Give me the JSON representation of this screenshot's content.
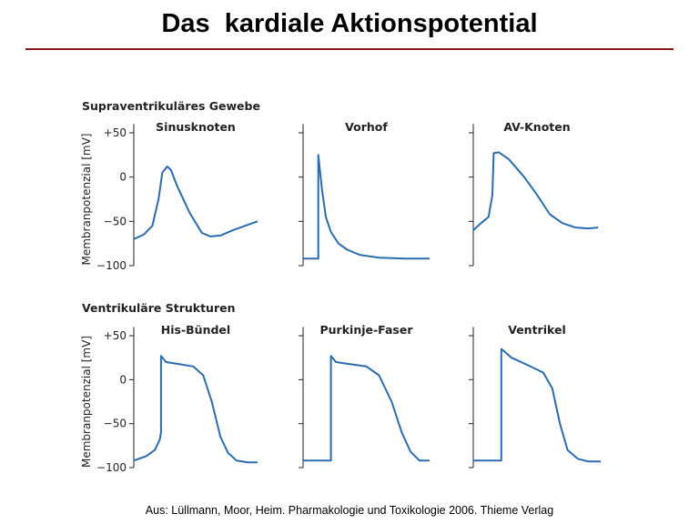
{
  "slide": {
    "title": "Das  kardiale Aktionspotential",
    "citation": "Aus: Lüllmann, Moor, Heim. Pharmakologie und Toxikologie 2006. Thieme Verlag"
  },
  "colors": {
    "rule": "#8b1a1a",
    "curve": "#2b6cb0",
    "axis": "#222222"
  },
  "chart_data": [
    {
      "type": "line",
      "section": "Supraventrikuläres Gewebe",
      "title": "Sinusknoten",
      "ylabel": "Membranpotenzial [mV]",
      "ylim": [
        -100,
        60
      ],
      "yticks": [
        50,
        0,
        -50,
        -100
      ],
      "ytick_labels": [
        "+50",
        "0",
        "−50",
        "−100"
      ],
      "grid": false,
      "series": [
        {
          "x": [
            0,
            0.08,
            0.15,
            0.2,
            0.23,
            0.27,
            0.3,
            0.35,
            0.45,
            0.55,
            0.62,
            0.7,
            0.8,
            0.9,
            1.0
          ],
          "values": [
            -70,
            -65,
            -55,
            -25,
            5,
            12,
            8,
            -10,
            -40,
            -63,
            -67,
            -66,
            -60,
            -55,
            -50
          ]
        }
      ]
    },
    {
      "type": "line",
      "section": "Supraventrikuläres Gewebe",
      "title": "Vorhof",
      "ylim": [
        -100,
        60
      ],
      "grid": false,
      "series": [
        {
          "x": [
            0,
            0.12,
            0.12,
            0.15,
            0.18,
            0.22,
            0.28,
            0.35,
            0.45,
            0.6,
            0.8,
            1.0
          ],
          "values": [
            -92,
            -92,
            25,
            -15,
            -45,
            -62,
            -75,
            -82,
            -88,
            -91,
            -92,
            -92
          ]
        }
      ]
    },
    {
      "type": "line",
      "section": "Supraventrikuläres Gewebe",
      "title": "AV-Knoten",
      "ylim": [
        -100,
        60
      ],
      "grid": false,
      "series": [
        {
          "x": [
            0,
            0.06,
            0.12,
            0.15,
            0.16,
            0.2,
            0.28,
            0.4,
            0.5,
            0.6,
            0.7,
            0.8,
            0.9,
            0.98
          ],
          "values": [
            -60,
            -52,
            -45,
            -20,
            27,
            28,
            20,
            0,
            -20,
            -42,
            -52,
            -57,
            -58,
            -57
          ]
        }
      ]
    },
    {
      "type": "line",
      "section": "Ventrikuläre Strukturen",
      "title": "His-Bündel",
      "ylabel": "Membranpotenzial [mV]",
      "ylim": [
        -100,
        60
      ],
      "yticks": [
        50,
        0,
        -50,
        -100
      ],
      "ytick_labels": [
        "+50",
        "0",
        "−50",
        "−100"
      ],
      "grid": false,
      "series": [
        {
          "x": [
            0,
            0.1,
            0.17,
            0.21,
            0.22,
            0.22,
            0.26,
            0.35,
            0.48,
            0.56,
            0.63,
            0.7,
            0.76,
            0.83,
            0.92,
            1.0
          ],
          "values": [
            -92,
            -87,
            -80,
            -68,
            -60,
            27,
            20,
            18,
            15,
            5,
            -25,
            -65,
            -83,
            -92,
            -94,
            -94
          ]
        }
      ]
    },
    {
      "type": "line",
      "section": "Ventrikuläre Strukturen",
      "title": "Purkinje-Faser",
      "ylim": [
        -100,
        60
      ],
      "grid": false,
      "series": [
        {
          "x": [
            0,
            0.22,
            0.22,
            0.26,
            0.35,
            0.5,
            0.6,
            0.7,
            0.78,
            0.85,
            0.92,
            1.0
          ],
          "values": [
            -92,
            -92,
            27,
            20,
            18,
            15,
            5,
            -25,
            -60,
            -82,
            -92,
            -92
          ]
        }
      ]
    },
    {
      "type": "line",
      "section": "Ventrikuläre Strukturen",
      "title": "Ventrikel",
      "ylim": [
        -100,
        60
      ],
      "grid": false,
      "series": [
        {
          "x": [
            0,
            0.22,
            0.22,
            0.3,
            0.42,
            0.55,
            0.62,
            0.68,
            0.74,
            0.82,
            0.9,
            1.0
          ],
          "values": [
            -92,
            -92,
            35,
            25,
            17,
            8,
            -10,
            -50,
            -80,
            -90,
            -93,
            -93
          ]
        }
      ]
    }
  ]
}
